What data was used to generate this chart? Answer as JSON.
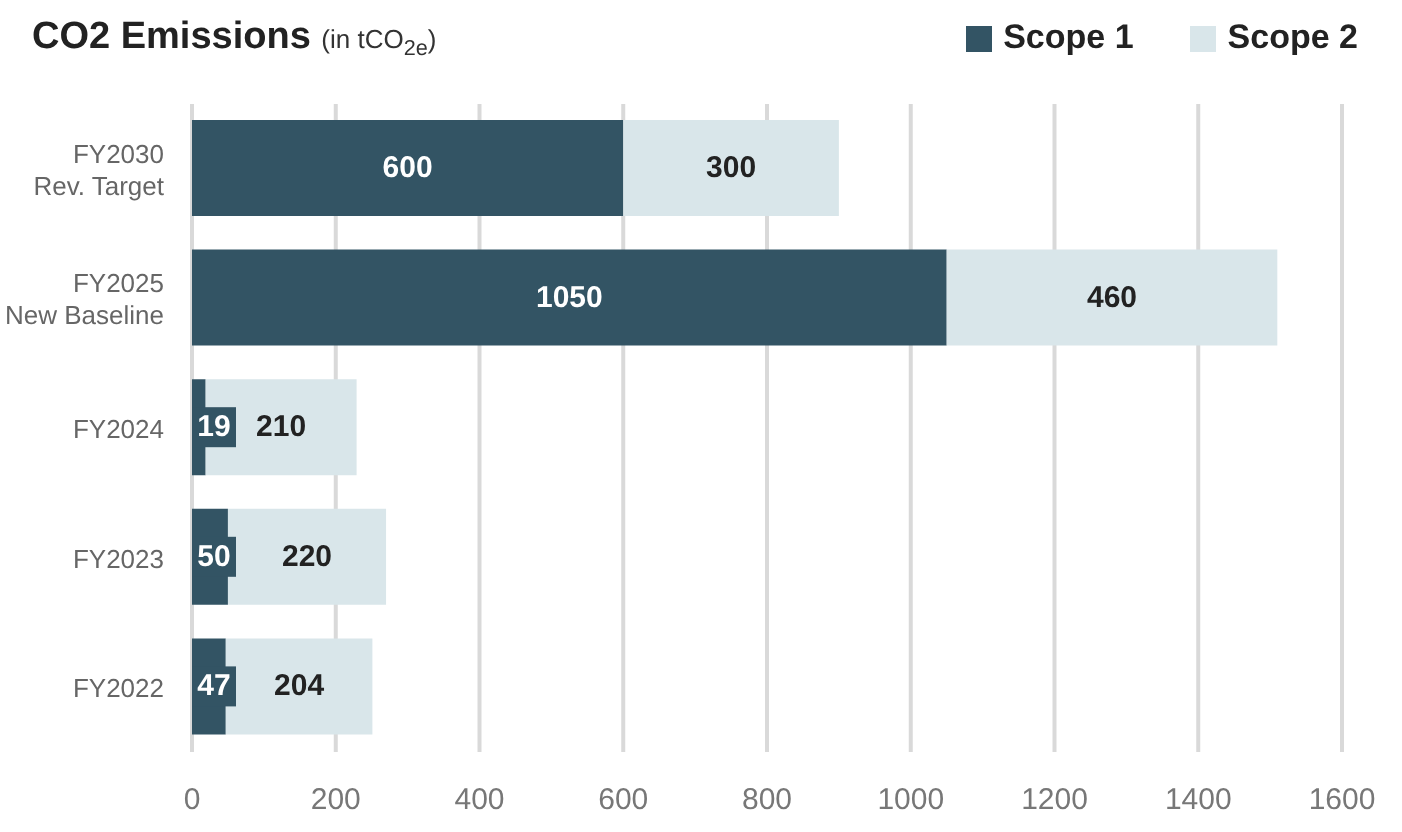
{
  "chart_data": {
    "type": "bar",
    "orientation": "horizontal",
    "stacked": true,
    "title": "CO2 Emissions",
    "subtitle": "(in tCO$_{2e}$)",
    "categories": [
      "FY2030\nRev. Target",
      "FY2025\nNew Baseline",
      "FY2024",
      "FY2023",
      "FY2022"
    ],
    "series": [
      {
        "name": "Scope 1",
        "color": "#335464",
        "values": [
          600,
          1050,
          19,
          50,
          47
        ]
      },
      {
        "name": "Scope 2",
        "color": "#d9e6ea",
        "values": [
          300,
          460,
          210,
          220,
          204
        ]
      }
    ],
    "xlim": [
      0,
      1600
    ],
    "xticks": [
      0,
      200,
      400,
      600,
      800,
      1000,
      1200,
      1400,
      1600
    ],
    "grid": "x",
    "legend": "top right",
    "data_labels": true
  }
}
